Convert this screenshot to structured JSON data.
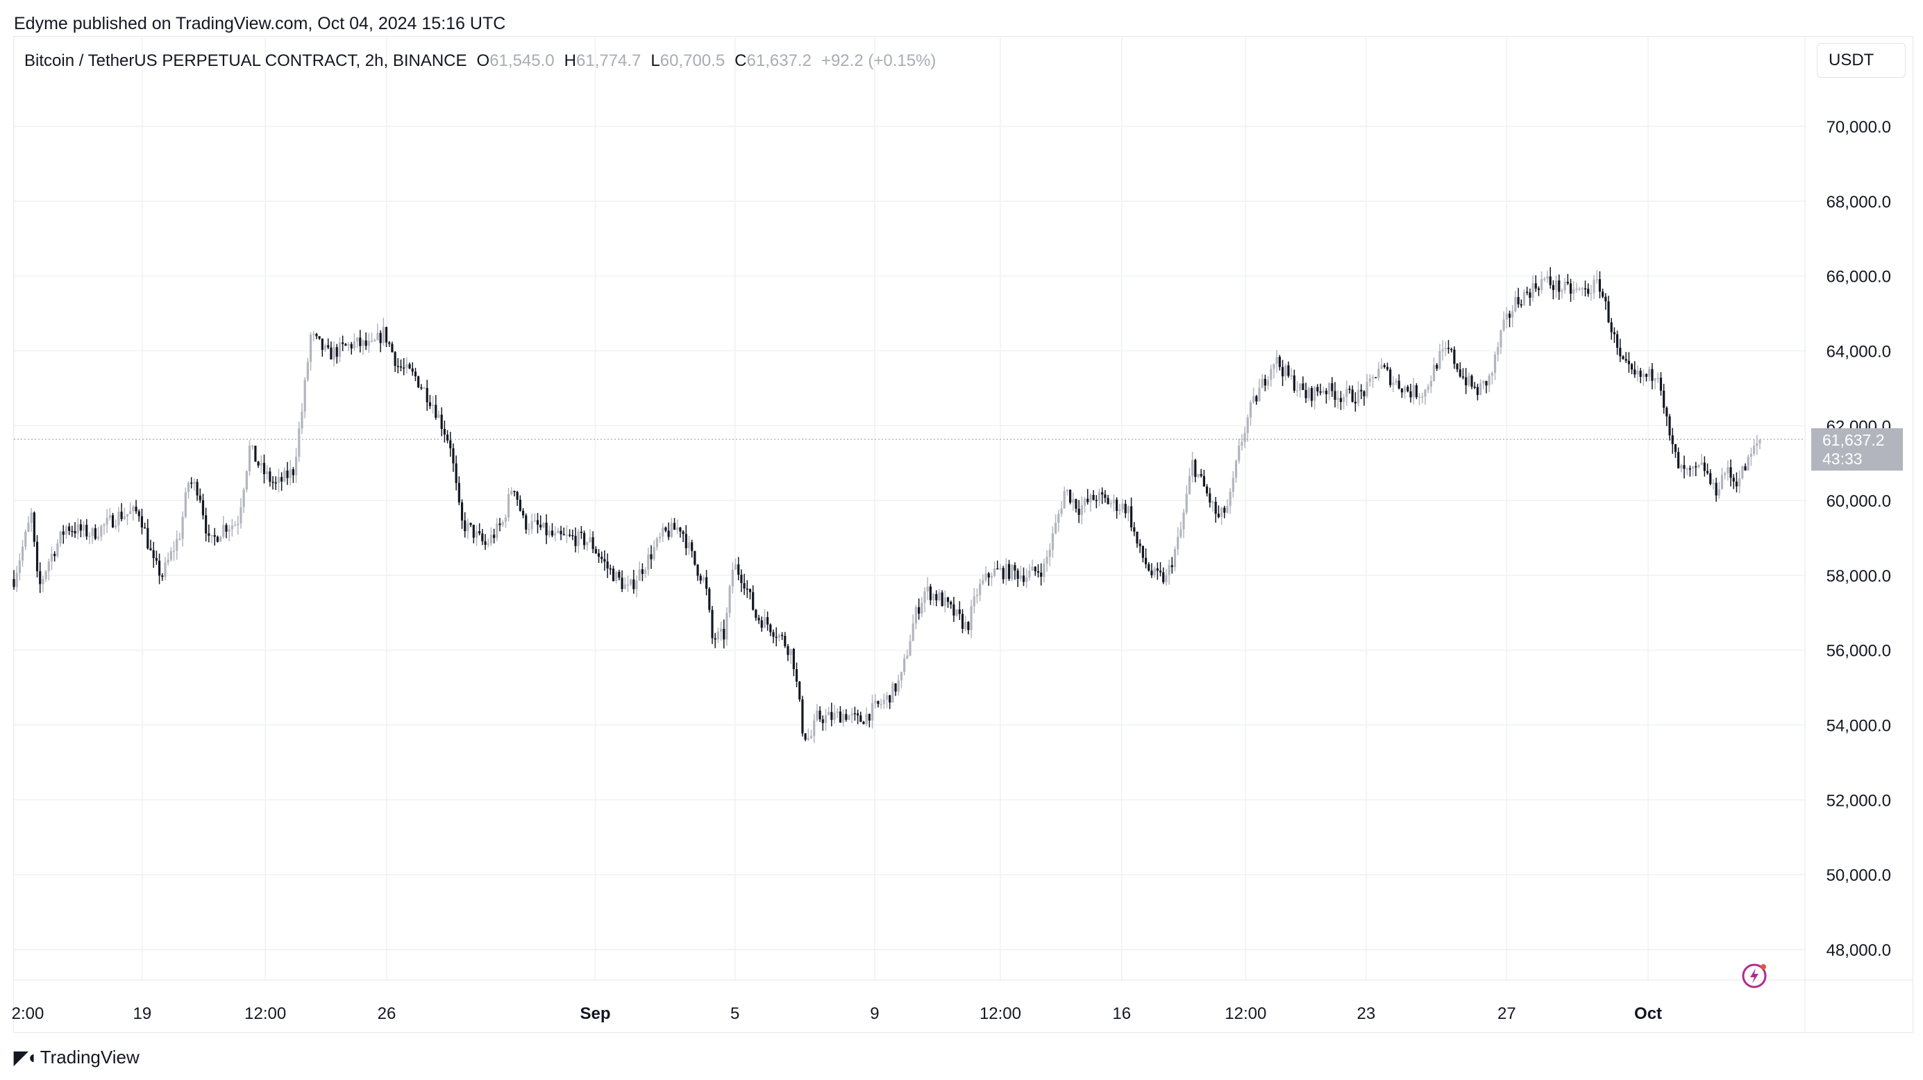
{
  "header": {
    "published": "Edyme published on TradingView.com, Oct 04, 2024 15:16 UTC"
  },
  "legend": {
    "symbol": "Bitcoin / TetherUS PERPETUAL CONTRACT, 2h, BINANCE",
    "o_label": "O",
    "o": "61,545.0",
    "h_label": "H",
    "h": "61,774.7",
    "l_label": "L",
    "l": "60,700.5",
    "c_label": "C",
    "c": "61,637.2",
    "change": "+92.2 (+0.15%)"
  },
  "currency_button": "USDT",
  "price_tag": {
    "price": "61,637.2",
    "countdown": "43:33"
  },
  "footer": {
    "brand": "TradingView"
  },
  "icons": {
    "lightning": "lightning-icon",
    "brand_mark": "tradingview-logo-icon"
  },
  "colors": {
    "candle": "#131722",
    "candle_up_light": "#b2b5be",
    "grid": "#f0f1f3",
    "accent": "#b22a8a"
  },
  "chart_data": {
    "type": "candlestick",
    "y_ticks": [
      "70,000.0",
      "68,000.0",
      "66,000.0",
      "64,000.0",
      "62,000.0",
      "60,000.0",
      "58,000.0",
      "56,000.0",
      "54,000.0",
      "52,000.0",
      "50,000.0",
      "48,000.0"
    ],
    "y_tick_values": [
      70000,
      68000,
      66000,
      64000,
      62000,
      60000,
      58000,
      56000,
      54000,
      52000,
      50000,
      48000
    ],
    "ylim": [
      47000,
      72000
    ],
    "x_ticks": [
      {
        "label": "2:00",
        "pos": 0.0
      },
      {
        "label": "19",
        "pos": 0.0735
      },
      {
        "label": "12:00",
        "pos": 0.144
      },
      {
        "label": "26",
        "pos": 0.2135
      },
      {
        "label": "Sep",
        "pos": 0.333,
        "bold": true
      },
      {
        "label": "5",
        "pos": 0.413
      },
      {
        "label": "9",
        "pos": 0.493
      },
      {
        "label": "12:00",
        "pos": 0.565
      },
      {
        "label": "16",
        "pos": 0.6345
      },
      {
        "label": "12:00",
        "pos": 0.7055
      },
      {
        "label": "23",
        "pos": 0.7745
      },
      {
        "label": "27",
        "pos": 0.855
      },
      {
        "label": "Oct",
        "pos": 0.936,
        "bold": true
      }
    ],
    "current_price": 61637.2,
    "close_path": [
      [
        0.0,
        57900
      ],
      [
        0.01,
        59600
      ],
      [
        0.014,
        57600
      ],
      [
        0.02,
        58400
      ],
      [
        0.03,
        59300
      ],
      [
        0.045,
        59100
      ],
      [
        0.06,
        59600
      ],
      [
        0.072,
        59700
      ],
      [
        0.08,
        58300
      ],
      [
        0.085,
        58000
      ],
      [
        0.095,
        59100
      ],
      [
        0.1,
        60500
      ],
      [
        0.106,
        60300
      ],
      [
        0.112,
        58800
      ],
      [
        0.12,
        59300
      ],
      [
        0.128,
        59400
      ],
      [
        0.135,
        61400
      ],
      [
        0.142,
        60800
      ],
      [
        0.15,
        60400
      ],
      [
        0.16,
        60800
      ],
      [
        0.165,
        62400
      ],
      [
        0.17,
        64400
      ],
      [
        0.18,
        63900
      ],
      [
        0.195,
        64200
      ],
      [
        0.205,
        64100
      ],
      [
        0.212,
        64500
      ],
      [
        0.22,
        63600
      ],
      [
        0.23,
        63300
      ],
      [
        0.24,
        62600
      ],
      [
        0.25,
        61500
      ],
      [
        0.256,
        59400
      ],
      [
        0.262,
        59200
      ],
      [
        0.27,
        58800
      ],
      [
        0.28,
        59400
      ],
      [
        0.286,
        60500
      ],
      [
        0.292,
        59400
      ],
      [
        0.3,
        59300
      ],
      [
        0.31,
        59000
      ],
      [
        0.32,
        59000
      ],
      [
        0.33,
        58900
      ],
      [
        0.34,
        58200
      ],
      [
        0.352,
        57600
      ],
      [
        0.36,
        58200
      ],
      [
        0.372,
        59100
      ],
      [
        0.382,
        59300
      ],
      [
        0.39,
        58300
      ],
      [
        0.396,
        57800
      ],
      [
        0.4,
        56300
      ],
      [
        0.407,
        56400
      ],
      [
        0.412,
        58300
      ],
      [
        0.418,
        57900
      ],
      [
        0.425,
        56900
      ],
      [
        0.432,
        56700
      ],
      [
        0.44,
        56300
      ],
      [
        0.446,
        55900
      ],
      [
        0.452,
        53800
      ],
      [
        0.456,
        53600
      ],
      [
        0.46,
        54200
      ],
      [
        0.468,
        54200
      ],
      [
        0.476,
        54300
      ],
      [
        0.484,
        54100
      ],
      [
        0.492,
        54400
      ],
      [
        0.5,
        54700
      ],
      [
        0.508,
        55200
      ],
      [
        0.516,
        56900
      ],
      [
        0.522,
        57600
      ],
      [
        0.53,
        57400
      ],
      [
        0.538,
        57000
      ],
      [
        0.546,
        56600
      ],
      [
        0.552,
        57600
      ],
      [
        0.56,
        58100
      ],
      [
        0.57,
        58100
      ],
      [
        0.58,
        58000
      ],
      [
        0.59,
        58200
      ],
      [
        0.596,
        59200
      ],
      [
        0.602,
        60300
      ],
      [
        0.61,
        59800
      ],
      [
        0.62,
        60100
      ],
      [
        0.63,
        59900
      ],
      [
        0.638,
        59800
      ],
      [
        0.644,
        58700
      ],
      [
        0.652,
        58000
      ],
      [
        0.66,
        57900
      ],
      [
        0.668,
        59100
      ],
      [
        0.675,
        61000
      ],
      [
        0.682,
        60300
      ],
      [
        0.69,
        59500
      ],
      [
        0.696,
        59900
      ],
      [
        0.702,
        61400
      ],
      [
        0.708,
        62400
      ],
      [
        0.716,
        63200
      ],
      [
        0.722,
        63800
      ],
      [
        0.73,
        63300
      ],
      [
        0.74,
        62800
      ],
      [
        0.75,
        63000
      ],
      [
        0.76,
        62800
      ],
      [
        0.77,
        62800
      ],
      [
        0.776,
        63000
      ],
      [
        0.782,
        63600
      ],
      [
        0.79,
        63200
      ],
      [
        0.8,
        62900
      ],
      [
        0.808,
        62900
      ],
      [
        0.816,
        63800
      ],
      [
        0.822,
        64000
      ],
      [
        0.83,
        63300
      ],
      [
        0.838,
        62900
      ],
      [
        0.846,
        63300
      ],
      [
        0.852,
        64500
      ],
      [
        0.86,
        65300
      ],
      [
        0.868,
        65600
      ],
      [
        0.876,
        65900
      ],
      [
        0.884,
        65700
      ],
      [
        0.892,
        65600
      ],
      [
        0.9,
        65600
      ],
      [
        0.908,
        65800
      ],
      [
        0.914,
        64800
      ],
      [
        0.92,
        63700
      ],
      [
        0.928,
        63300
      ],
      [
        0.936,
        63300
      ],
      [
        0.942,
        63500
      ],
      [
        0.948,
        61700
      ],
      [
        0.954,
        60800
      ],
      [
        0.96,
        60700
      ],
      [
        0.968,
        60900
      ],
      [
        0.974,
        60200
      ],
      [
        0.98,
        60800
      ],
      [
        0.986,
        60500
      ],
      [
        0.992,
        60900
      ],
      [
        0.996,
        61300
      ],
      [
        1.0,
        61637
      ]
    ]
  }
}
